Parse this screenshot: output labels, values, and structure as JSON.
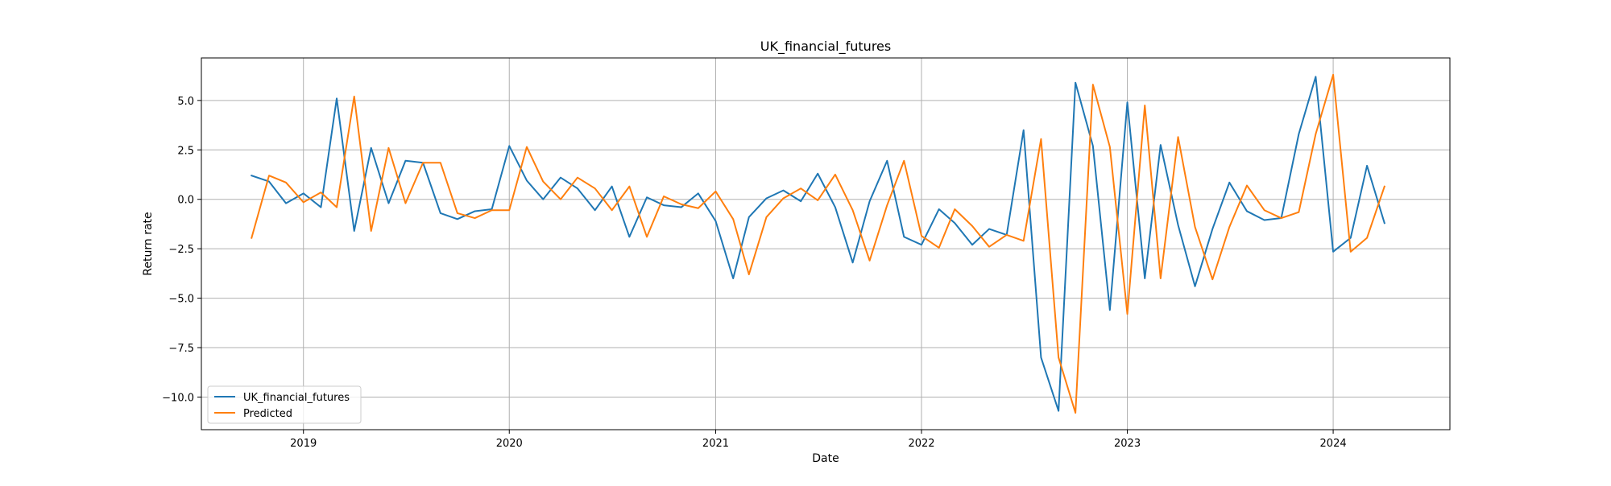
{
  "chart_data": {
    "type": "line",
    "title": "UK_financial_futures",
    "xlabel": "Date",
    "ylabel": "Return rate",
    "x": [
      "2018-10-01",
      "2018-11-01",
      "2018-12-01",
      "2019-01-01",
      "2019-02-01",
      "2019-03-01",
      "2019-04-01",
      "2019-05-01",
      "2019-06-01",
      "2019-07-01",
      "2019-08-01",
      "2019-09-01",
      "2019-10-01",
      "2019-11-01",
      "2019-12-01",
      "2020-01-01",
      "2020-02-01",
      "2020-03-01",
      "2020-04-01",
      "2020-05-01",
      "2020-06-01",
      "2020-07-01",
      "2020-08-01",
      "2020-09-01",
      "2020-10-01",
      "2020-11-01",
      "2020-12-01",
      "2021-01-01",
      "2021-02-01",
      "2021-03-01",
      "2021-04-01",
      "2021-05-01",
      "2021-06-01",
      "2021-07-01",
      "2021-08-01",
      "2021-09-01",
      "2021-10-01",
      "2021-11-01",
      "2021-12-01",
      "2022-01-01",
      "2022-02-01",
      "2022-03-01",
      "2022-04-01",
      "2022-05-01",
      "2022-06-01",
      "2022-07-01",
      "2022-08-01",
      "2022-09-01",
      "2022-10-01",
      "2022-11-01",
      "2022-12-01",
      "2023-01-01",
      "2023-02-01",
      "2023-03-01",
      "2023-04-01",
      "2023-05-01",
      "2023-06-01",
      "2023-07-01",
      "2023-08-01",
      "2023-09-01",
      "2023-10-01",
      "2023-11-01",
      "2023-12-01",
      "2024-01-01",
      "2024-02-01",
      "2024-03-01",
      "2024-04-01"
    ],
    "series": [
      {
        "name": "UK_financial_futures",
        "color": "#1f77b4",
        "values": [
          1.2,
          0.9,
          -0.2,
          0.3,
          -0.4,
          5.1,
          -1.6,
          2.6,
          -0.2,
          1.95,
          1.85,
          -0.7,
          -1.0,
          -0.6,
          -0.5,
          2.7,
          0.95,
          0.0,
          1.1,
          0.55,
          -0.55,
          0.65,
          -1.9,
          0.1,
          -0.3,
          -0.4,
          0.3,
          -1.1,
          -4.0,
          -0.9,
          0.05,
          0.45,
          -0.1,
          1.3,
          -0.4,
          -3.2,
          -0.1,
          1.95,
          -1.9,
          -2.3,
          -0.5,
          -1.2,
          -2.3,
          -1.5,
          -1.8,
          3.5,
          -8.0,
          -10.7,
          5.9,
          2.7,
          -5.6,
          4.9,
          -4.0,
          2.75,
          -1.3,
          -4.4,
          -1.5,
          0.85,
          -0.6,
          -1.05,
          -0.95,
          3.3,
          6.2,
          -2.65,
          -1.95,
          1.7,
          -1.2
        ]
      },
      {
        "name": "Predicted",
        "color": "#ff7f0e",
        "values": [
          -1.95,
          1.2,
          0.85,
          -0.15,
          0.35,
          -0.4,
          5.2,
          -1.6,
          2.6,
          -0.2,
          1.85,
          1.85,
          -0.7,
          -0.95,
          -0.55,
          -0.55,
          2.65,
          0.9,
          0.0,
          1.1,
          0.55,
          -0.55,
          0.65,
          -1.9,
          0.15,
          -0.25,
          -0.45,
          0.4,
          -1.0,
          -3.8,
          -0.9,
          0.05,
          0.55,
          -0.05,
          1.25,
          -0.55,
          -3.1,
          -0.3,
          1.95,
          -1.85,
          -2.45,
          -0.5,
          -1.35,
          -2.4,
          -1.8,
          -2.1,
          3.05,
          -8.0,
          -10.8,
          5.8,
          2.65,
          -5.8,
          4.75,
          -4.0,
          3.15,
          -1.4,
          -4.05,
          -1.4,
          0.7,
          -0.55,
          -0.95,
          -0.65,
          3.3,
          6.3,
          -2.65,
          -1.95,
          0.65
        ]
      }
    ],
    "xlim": [
      "2018-07-04",
      "2024-07-26"
    ],
    "ylim": [
      -11.65,
      7.15
    ],
    "xticks": [
      "2019-01-01",
      "2020-01-01",
      "2021-01-01",
      "2022-01-01",
      "2023-01-01",
      "2024-01-01"
    ],
    "xtick_labels": [
      "2019",
      "2020",
      "2021",
      "2022",
      "2023",
      "2024"
    ],
    "yticks": [
      5.0,
      2.5,
      0.0,
      -2.5,
      -5.0,
      -7.5,
      -10.0
    ],
    "ytick_labels": [
      "5.0",
      "2.5",
      "0.0",
      "−2.5",
      "−5.0",
      "−7.5",
      "−10.0"
    ],
    "grid": true,
    "legend": "lower-left"
  }
}
